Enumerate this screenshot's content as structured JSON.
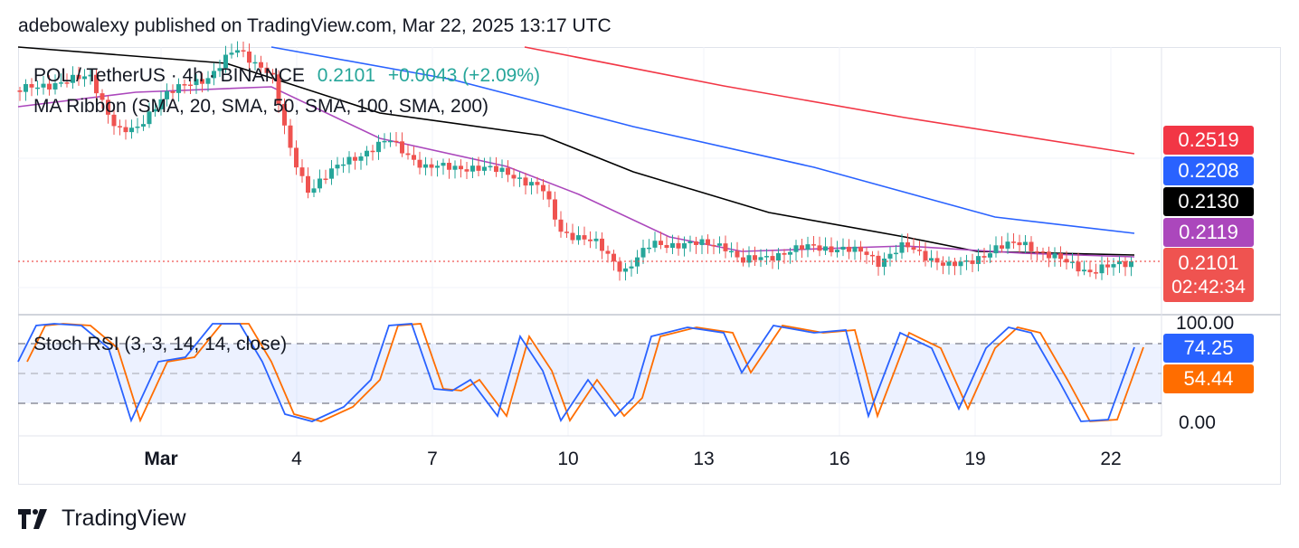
{
  "header": {
    "text": "adebowalexy published on TradingView.com, Mar 22, 2025 13:17 UTC"
  },
  "legend": {
    "symbol": "POL / TetherUS · 4h · BINANCE",
    "last": "0.2101",
    "change": "+0.0043 (+2.09%)",
    "ma_label": "MA Ribbon (SMA, 20, SMA, 50, SMA, 100, SMA, 200)",
    "stoch_label": "Stoch RSI (3, 3, 14, 14, close)"
  },
  "price_badges": [
    {
      "value": "0.2519",
      "color": "#f23645"
    },
    {
      "value": "0.2208",
      "color": "#2962ff"
    },
    {
      "value": "0.2130",
      "color": "#000000"
    },
    {
      "value": "0.2119",
      "color": "#ab47bc"
    },
    {
      "value": "0.2101",
      "sub": "02:42:34",
      "color": "#ef5350"
    }
  ],
  "stoch_badges": [
    {
      "value": "74.25",
      "color": "#2962ff"
    },
    {
      "value": "54.44",
      "color": "#ff6d00"
    }
  ],
  "stoch_axis": {
    "top": "100.00",
    "bottom": "0.00"
  },
  "x_ticks": [
    "Mar",
    "4",
    "7",
    "10",
    "13",
    "16",
    "19",
    "22"
  ],
  "footer": {
    "brand": "TradingView"
  },
  "colors": {
    "up": "#26a69a",
    "down": "#ef5350",
    "sma20": "#ab47bc",
    "sma50": "#000000",
    "sma100": "#2962ff",
    "sma200": "#f23645",
    "k": "#2962ff",
    "d": "#ff6d00"
  },
  "chart_data": {
    "type": "candlestick",
    "interval": "4h",
    "x_labels": [
      "Mar",
      "4",
      "7",
      "10",
      "13",
      "16",
      "19",
      "22"
    ],
    "price_range": [
      0.195,
      0.3
    ],
    "last_price": 0.2101,
    "moving_averages": [
      {
        "name": "SMA 20",
        "last": 0.2119
      },
      {
        "name": "SMA 50",
        "last": 0.213
      },
      {
        "name": "SMA 100",
        "last": 0.2208
      },
      {
        "name": "SMA 200",
        "last": 0.2519
      }
    ],
    "stoch_rsi": {
      "k_last": 74.25,
      "d_last": 54.44,
      "range": [
        0,
        100
      ],
      "bands": [
        80,
        50,
        20
      ]
    }
  }
}
